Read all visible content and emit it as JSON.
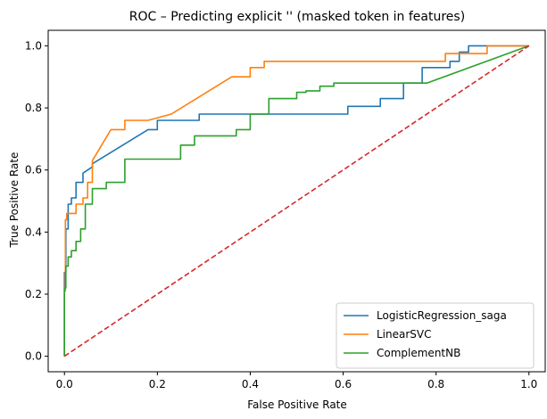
{
  "chart_data": {
    "type": "line",
    "title": "ROC – Predicting explicit '' (masked token in features)",
    "xlabel": "False Positive Rate",
    "ylabel": "True Positive Rate",
    "xlim": [
      -0.035,
      1.035
    ],
    "ylim": [
      -0.05,
      1.05
    ],
    "xticks": [
      0.0,
      0.2,
      0.4,
      0.6,
      0.8,
      1.0
    ],
    "yticks": [
      0.0,
      0.2,
      0.4,
      0.6,
      0.8,
      1.0
    ],
    "xtick_labels": [
      "0.0",
      "0.2",
      "0.4",
      "0.6",
      "0.8",
      "1.0"
    ],
    "ytick_labels": [
      "0.0",
      "0.2",
      "0.4",
      "0.6",
      "0.8",
      "1.0"
    ],
    "legend_position": "bottom-right",
    "series": [
      {
        "name": "LogisticRegression_saga",
        "color": "#1f77b4",
        "x": [
          0,
          0.0,
          0.003,
          0.003,
          0.008,
          0.008,
          0.015,
          0.015,
          0.025,
          0.025,
          0.04,
          0.04,
          0.06,
          0.06,
          0.18,
          0.18,
          0.2,
          0.2,
          0.29,
          0.29,
          0.61,
          0.61,
          0.68,
          0.68,
          0.73,
          0.73,
          0.77,
          0.77,
          0.8,
          0.8,
          0.83,
          0.83,
          0.85,
          0.85,
          0.87,
          0.87,
          1.0
        ],
        "y": [
          0,
          0.27,
          0.27,
          0.41,
          0.41,
          0.49,
          0.49,
          0.51,
          0.51,
          0.56,
          0.56,
          0.59,
          0.61,
          0.62,
          0.73,
          0.73,
          0.73,
          0.76,
          0.76,
          0.78,
          0.78,
          0.805,
          0.805,
          0.83,
          0.83,
          0.88,
          0.88,
          0.93,
          0.93,
          0.93,
          0.93,
          0.95,
          0.95,
          0.98,
          0.98,
          1.0,
          1.0
        ]
      },
      {
        "name": "LinearSVC",
        "color": "#ff7f0e",
        "x": [
          0,
          0.0,
          0.002,
          0.002,
          0.005,
          0.005,
          0.01,
          0.01,
          0.025,
          0.025,
          0.04,
          0.04,
          0.05,
          0.05,
          0.06,
          0.06,
          0.08,
          0.1,
          0.12,
          0.12,
          0.13,
          0.13,
          0.18,
          0.23,
          0.36,
          0.4,
          0.4,
          0.43,
          0.43,
          0.45,
          0.82,
          0.82,
          0.85,
          0.85,
          0.91,
          0.91,
          1.0
        ],
        "y": [
          0,
          0.21,
          0.21,
          0.44,
          0.44,
          0.46,
          0.46,
          0.46,
          0.46,
          0.49,
          0.49,
          0.51,
          0.51,
          0.56,
          0.56,
          0.63,
          0.68,
          0.73,
          0.73,
          0.73,
          0.73,
          0.76,
          0.76,
          0.78,
          0.9,
          0.9,
          0.93,
          0.93,
          0.95,
          0.95,
          0.95,
          0.975,
          0.975,
          0.975,
          0.975,
          1.0,
          1.0
        ]
      },
      {
        "name": "ComplementNB",
        "color": "#2ca02c",
        "x": [
          0,
          0.0,
          0.003,
          0.003,
          0.008,
          0.008,
          0.015,
          0.015,
          0.025,
          0.025,
          0.035,
          0.035,
          0.045,
          0.045,
          0.06,
          0.06,
          0.09,
          0.09,
          0.13,
          0.13,
          0.25,
          0.25,
          0.28,
          0.28,
          0.37,
          0.37,
          0.4,
          0.4,
          0.44,
          0.44,
          0.48,
          0.48,
          0.5,
          0.5,
          0.52,
          0.52,
          0.55,
          0.55,
          0.58,
          0.58,
          0.78,
          1.0
        ],
        "y": [
          0,
          0.22,
          0.22,
          0.29,
          0.29,
          0.32,
          0.32,
          0.34,
          0.34,
          0.37,
          0.37,
          0.41,
          0.41,
          0.49,
          0.49,
          0.54,
          0.54,
          0.56,
          0.56,
          0.635,
          0.635,
          0.68,
          0.68,
          0.71,
          0.71,
          0.73,
          0.73,
          0.78,
          0.78,
          0.83,
          0.83,
          0.83,
          0.83,
          0.85,
          0.85,
          0.855,
          0.855,
          0.87,
          0.87,
          0.88,
          0.88,
          1.0
        ]
      },
      {
        "name": "",
        "color": "#d62728",
        "dashed": true,
        "x": [
          0,
          1
        ],
        "y": [
          0,
          1
        ]
      }
    ]
  }
}
